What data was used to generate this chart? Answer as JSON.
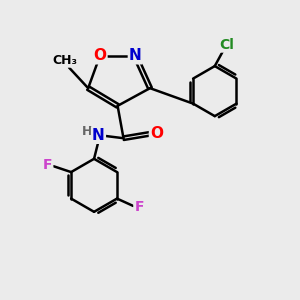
{
  "bg_color": "#ebebeb",
  "bond_color": "#000000",
  "bond_width": 1.8,
  "atom_colors": {
    "O": "#ff0000",
    "N": "#0000cd",
    "Cl": "#228b22",
    "F": "#cc44cc",
    "H": "#666666",
    "C": "#000000"
  },
  "font_size": 10,
  "fig_size": [
    3.0,
    3.0
  ],
  "dpi": 100
}
